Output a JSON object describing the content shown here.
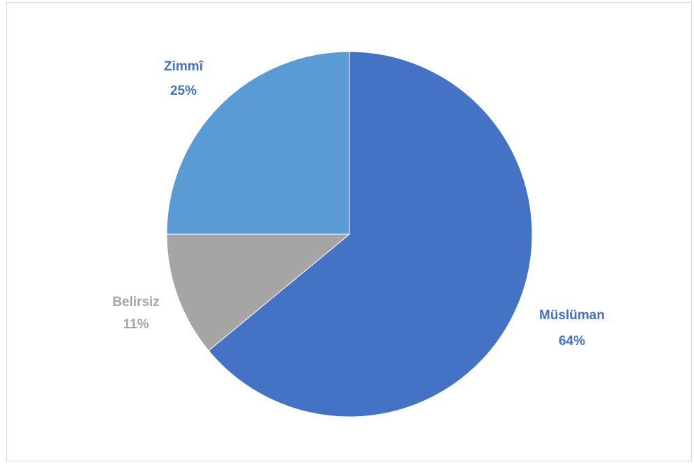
{
  "chart_data": {
    "type": "pie",
    "title": "",
    "categories": [
      "Müslüman",
      "Belirsiz",
      "Zimmî"
    ],
    "values": [
      64,
      11,
      25
    ],
    "percent_labels": [
      "64%",
      "11%",
      "25%"
    ],
    "colors": [
      "#4472c4",
      "#a5a5a5",
      "#5b9bd5"
    ],
    "label_colors": [
      "#4472c4",
      "#a5a5a5",
      "#4472c4"
    ],
    "start_angle_deg": 0,
    "direction": "clockwise",
    "legend": "none",
    "data_labels": "outside"
  }
}
